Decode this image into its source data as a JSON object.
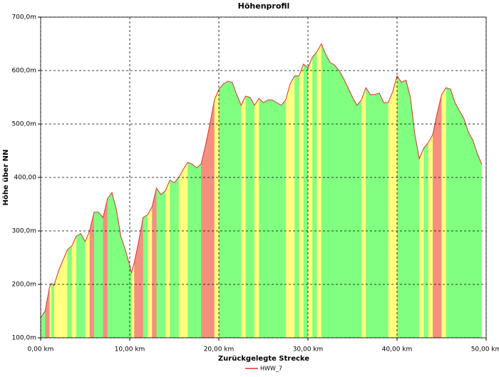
{
  "chart_data": {
    "type": "area",
    "title": "Höhenprofil",
    "x_label": "Zurückgelegte Strecke",
    "y_label": "Höhe über NN",
    "x": [
      0,
      0.5,
      1,
      1.2,
      1.5,
      2,
      2.5,
      3,
      3.5,
      4,
      4.5,
      5,
      5.5,
      6,
      6.5,
      7,
      7.5,
      8,
      8.5,
      9,
      9.5,
      10,
      10.2,
      10.5,
      11,
      11.5,
      12,
      12.5,
      13,
      13.5,
      14,
      14.5,
      15,
      15.5,
      16,
      16.5,
      17,
      17.5,
      18,
      18.5,
      19,
      19.5,
      20,
      20.5,
      21,
      21.5,
      22,
      22.5,
      23,
      23.5,
      24,
      24.5,
      25,
      25.5,
      26,
      26.5,
      27,
      27.5,
      28,
      28.5,
      29,
      29.5,
      30,
      30.5,
      31,
      31.5,
      32,
      32.5,
      33,
      33.5,
      34,
      34.5,
      35,
      35.5,
      36,
      36.5,
      37,
      37.5,
      38,
      38.5,
      39,
      39.5,
      40,
      40.5,
      41,
      41.5,
      42,
      42.5,
      43,
      43.5,
      44,
      44.5,
      45,
      45.5,
      46,
      46.5,
      47,
      47.5,
      48,
      48.5,
      49,
      49.5
    ],
    "series": [
      {
        "name": "HWW_7",
        "color": "#e03030",
        "values": [
          138,
          150,
          195,
          202,
          198,
          225,
          245,
          265,
          272,
          290,
          295,
          280,
          300,
          335,
          335,
          325,
          360,
          372,
          340,
          290,
          265,
          235,
          222,
          240,
          280,
          325,
          330,
          345,
          380,
          368,
          375,
          395,
          390,
          400,
          415,
          428,
          425,
          418,
          425,
          460,
          500,
          545,
          565,
          575,
          580,
          578,
          555,
          535,
          552,
          550,
          535,
          548,
          540,
          545,
          545,
          540,
          535,
          545,
          575,
          590,
          590,
          612,
          605,
          625,
          635,
          650,
          630,
          615,
          610,
          600,
          585,
          568,
          550,
          535,
          545,
          568,
          555,
          555,
          558,
          540,
          540,
          560,
          590,
          578,
          582,
          550,
          480,
          435,
          455,
          465,
          480,
          520,
          555,
          568,
          565,
          540,
          525,
          510,
          485,
          470,
          445,
          425
        ]
      }
    ],
    "xlim": [
      0,
      50
    ],
    "ylim": [
      100,
      700
    ],
    "xticks": [
      {
        "value": 0,
        "label": "0,00 km"
      },
      {
        "value": 10,
        "label": "10,00 km"
      },
      {
        "value": 20,
        "label": "20,00 km"
      },
      {
        "value": 30,
        "label": "30,00 km"
      },
      {
        "value": 40,
        "label": "40,00 km"
      },
      {
        "value": 50,
        "label": "50,00 km"
      }
    ],
    "yticks": [
      {
        "value": 100,
        "label": "100,0m"
      },
      {
        "value": 200,
        "label": "200,0m"
      },
      {
        "value": 300,
        "label": "300,0m"
      },
      {
        "value": 400,
        "label": "400,00"
      },
      {
        "value": 500,
        "label": "500,0m"
      },
      {
        "value": 600,
        "label": "600,0m"
      },
      {
        "value": 700,
        "label": "700,0m"
      }
    ],
    "grid": true
  }
}
